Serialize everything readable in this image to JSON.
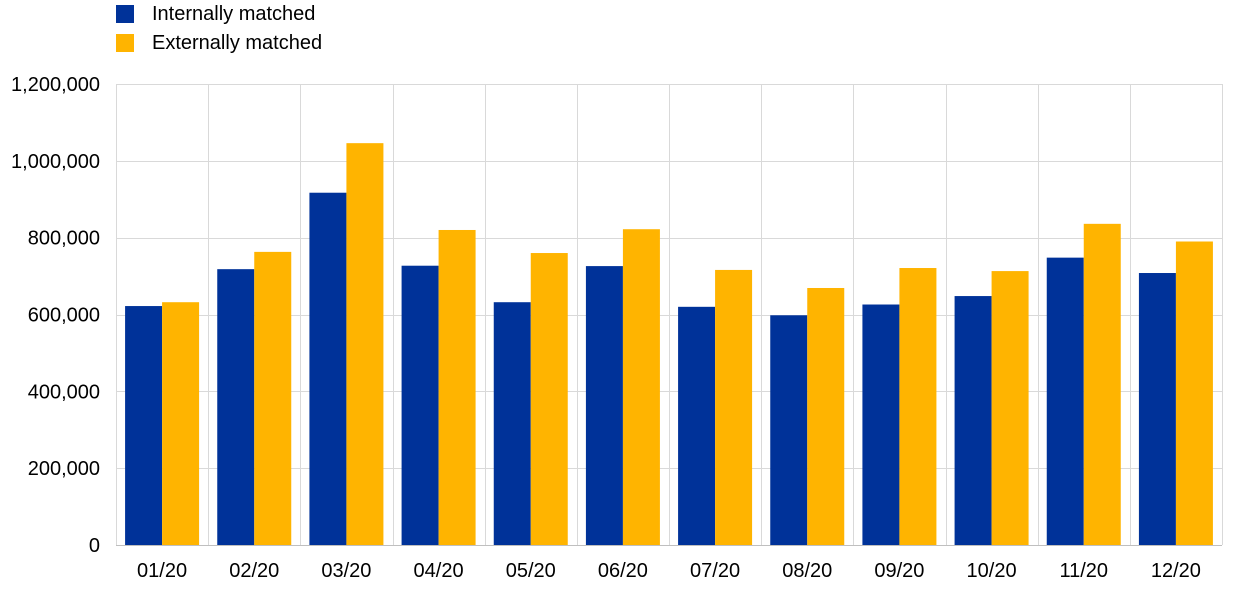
{
  "chart_data": {
    "type": "bar",
    "categories": [
      "01/20",
      "02/20",
      "03/20",
      "04/20",
      "05/20",
      "06/20",
      "07/20",
      "08/20",
      "09/20",
      "10/20",
      "11/20",
      "12/20"
    ],
    "series": [
      {
        "name": "Internally matched",
        "color": "#003299",
        "values": [
          622000,
          718000,
          917000,
          727000,
          632000,
          726000,
          620000,
          598000,
          626000,
          648000,
          748000,
          708000
        ]
      },
      {
        "name": "Externally matched",
        "color": "#FFB400",
        "values": [
          632000,
          763000,
          1046000,
          820000,
          760000,
          822000,
          716000,
          669000,
          721000,
          713000,
          836000,
          790000
        ]
      }
    ],
    "ylim": [
      0,
      1200000
    ],
    "yticks": [
      0,
      200000,
      400000,
      600000,
      800000,
      1000000,
      1200000
    ],
    "ytick_labels": [
      "0",
      "200,000",
      "400,000",
      "600,000",
      "800,000",
      "1,000,000",
      "1,200,000"
    ],
    "grid": true,
    "legend_position": "top-left"
  }
}
